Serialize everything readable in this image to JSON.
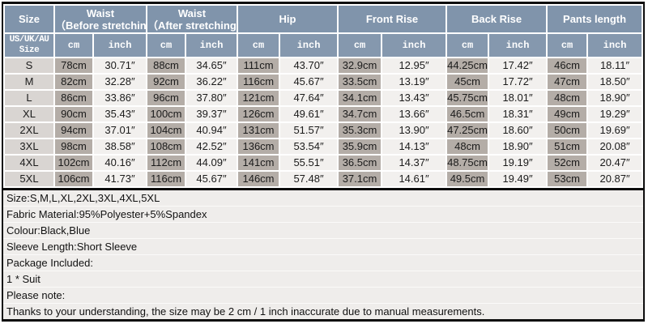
{
  "colors": {
    "header_blue": "#8094ab",
    "subheader_blue": "#8598ae",
    "size_cell_bg": "#d9d5d2",
    "cm_cell_bg": "#b4ada7",
    "inch_cell_bg": "#f2f0ee",
    "notes_bg": "#efedeb",
    "border_black": "#0d0d0d"
  },
  "table": {
    "header": {
      "size_label": "Size",
      "size_sub": [
        "US/UK/AU",
        "Size"
      ],
      "unit_cm": "cm",
      "unit_inch": "inch",
      "groups": [
        {
          "line1": "Waist",
          "line2": "（Before stretching)"
        },
        {
          "line1": "Waist",
          "line2": "（After stretching)"
        },
        {
          "line1": "Hip",
          "line2": ""
        },
        {
          "line1": "Front Rise",
          "line2": ""
        },
        {
          "line1": "Back Rise",
          "line2": ""
        },
        {
          "line1": "Pants length",
          "line2": ""
        }
      ]
    },
    "rows": [
      {
        "size": "S",
        "cells": [
          "78cm",
          "30.71″",
          "88cm",
          "34.65″",
          "111cm",
          "43.70″",
          "32.9cm",
          "12.95″",
          "44.25cm",
          "17.42″",
          "46cm",
          "18.11″"
        ]
      },
      {
        "size": "M",
        "cells": [
          "82cm",
          "32.28″",
          "92cm",
          "36.22″",
          "116cm",
          "45.67″",
          "33.5cm",
          "13.19″",
          "45cm",
          "17.72″",
          "47cm",
          "18.50″"
        ]
      },
      {
        "size": "L",
        "cells": [
          "86cm",
          "33.86″",
          "96cm",
          "37.80″",
          "121cm",
          "47.64″",
          "34.1cm",
          "13.43″",
          "45.75cm",
          "18.01″",
          "48cm",
          "18.90″"
        ]
      },
      {
        "size": "XL",
        "cells": [
          "90cm",
          "35.43″",
          "100cm",
          "39.37″",
          "126cm",
          "49.61″",
          "34.7cm",
          "13.66″",
          "46.5cm",
          "18.31″",
          "49cm",
          "19.29″"
        ]
      },
      {
        "size": "2XL",
        "cells": [
          "94cm",
          "37.01″",
          "104cm",
          "40.94″",
          "131cm",
          "51.57″",
          "35.3cm",
          "13.90″",
          "47.25cm",
          "18.60″",
          "50cm",
          "19.69″"
        ]
      },
      {
        "size": "3XL",
        "cells": [
          "98cm",
          "38.58″",
          "108cm",
          "42.52″",
          "136cm",
          "53.54″",
          "35.9cm",
          "14.13″",
          "48cm",
          "18.90″",
          "51cm",
          "20.08″"
        ]
      },
      {
        "size": "4XL",
        "cells": [
          "102cm",
          "40.16″",
          "112cm",
          "44.09″",
          "141cm",
          "55.51″",
          "36.5cm",
          "14.37″",
          "48.75cm",
          "19.19″",
          "52cm",
          "20.47″"
        ]
      },
      {
        "size": "5XL",
        "cells": [
          "106cm",
          "41.73″",
          "116cm",
          "45.67″",
          "146cm",
          "57.48″",
          "37.1cm",
          "14.61″",
          "49.5cm",
          "19.49″",
          "53cm",
          "20.87″"
        ]
      }
    ]
  },
  "notes": [
    "Size:S,M,L,XL,2XL,3XL,4XL,5XL",
    "Fabric Material:95%Polyester+5%Spandex",
    "Colour:Black,Blue",
    "Sleeve Length:Short Sleeve",
    "Package Included:",
    "1 * Suit",
    "Please note:",
    "Thanks to your understanding, the size may be 2 cm / 1 inch inaccurate due to manual measurements."
  ]
}
